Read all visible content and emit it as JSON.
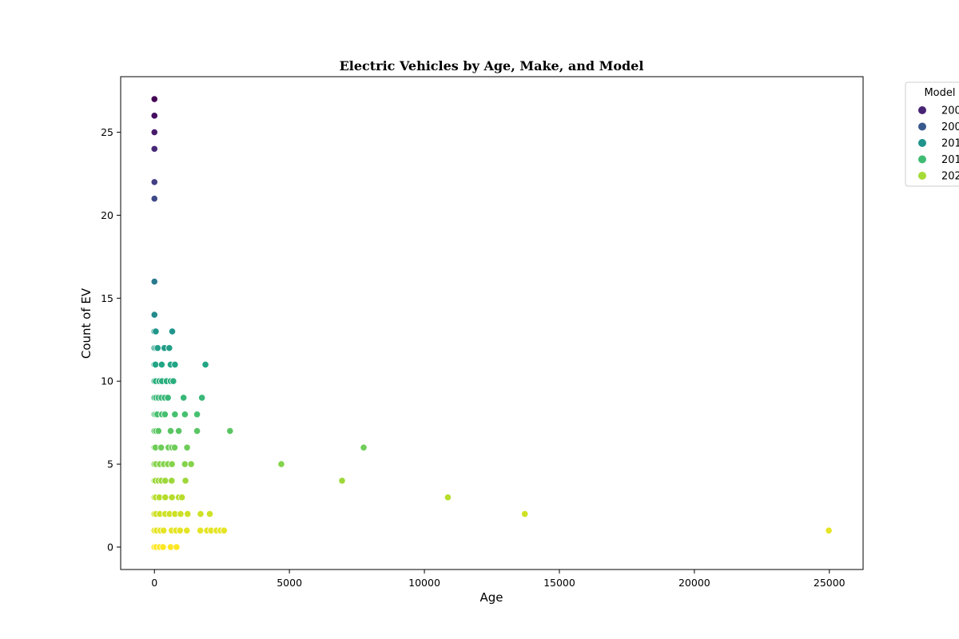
{
  "chart_data": {
    "type": "scatter",
    "title": "Electric Vehicles by Age, Make, and Model",
    "xlabel": "Age",
    "ylabel": "Count of EV",
    "xlim": [
      -1250,
      26250
    ],
    "ylim": [
      -1.35,
      28.35
    ],
    "xticks": [
      0,
      5000,
      10000,
      15000,
      20000,
      25000
    ],
    "yticks": [
      0,
      5,
      10,
      15,
      20,
      25
    ],
    "grid": false,
    "legend": {
      "title": "Model",
      "placement": "upper-right-outside",
      "entries": [
        {
          "label": "200",
          "color": "#482475"
        },
        {
          "label": "200",
          "color": "#38598c"
        },
        {
          "label": "201",
          "color": "#1f948c"
        },
        {
          "label": "201",
          "color": "#3fbc73"
        },
        {
          "label": "202",
          "color": "#a5db36"
        }
      ]
    },
    "colormap": [
      "#440154",
      "#482475",
      "#414487",
      "#355f8d",
      "#2a788e",
      "#21918c",
      "#22a884",
      "#44bf70",
      "#7ad151",
      "#bddf26",
      "#fde725"
    ],
    "points": [
      {
        "x": 0,
        "y": 27
      },
      {
        "x": 0,
        "y": 26
      },
      {
        "x": 0,
        "y": 25
      },
      {
        "x": 0,
        "y": 24
      },
      {
        "x": 0,
        "y": 22
      },
      {
        "x": 0,
        "y": 21
      },
      {
        "x": 0,
        "y": 16
      },
      {
        "x": 0,
        "y": 14
      },
      {
        "x": 0,
        "y": 13
      },
      {
        "x": 50,
        "y": 13
      },
      {
        "x": 660,
        "y": 13
      },
      {
        "x": 0,
        "y": 12
      },
      {
        "x": 60,
        "y": 12
      },
      {
        "x": 120,
        "y": 12
      },
      {
        "x": 370,
        "y": 12
      },
      {
        "x": 550,
        "y": 12
      },
      {
        "x": 0,
        "y": 11
      },
      {
        "x": 40,
        "y": 11
      },
      {
        "x": 270,
        "y": 11
      },
      {
        "x": 600,
        "y": 11
      },
      {
        "x": 760,
        "y": 11
      },
      {
        "x": 1890,
        "y": 11
      },
      {
        "x": 0,
        "y": 10
      },
      {
        "x": 50,
        "y": 10
      },
      {
        "x": 180,
        "y": 10
      },
      {
        "x": 280,
        "y": 10
      },
      {
        "x": 450,
        "y": 10
      },
      {
        "x": 600,
        "y": 10
      },
      {
        "x": 700,
        "y": 10
      },
      {
        "x": 0,
        "y": 9
      },
      {
        "x": 60,
        "y": 9
      },
      {
        "x": 150,
        "y": 9
      },
      {
        "x": 260,
        "y": 9
      },
      {
        "x": 380,
        "y": 9
      },
      {
        "x": 500,
        "y": 9
      },
      {
        "x": 1080,
        "y": 9
      },
      {
        "x": 1760,
        "y": 9
      },
      {
        "x": 0,
        "y": 8
      },
      {
        "x": 50,
        "y": 8
      },
      {
        "x": 110,
        "y": 8
      },
      {
        "x": 280,
        "y": 8
      },
      {
        "x": 390,
        "y": 8
      },
      {
        "x": 760,
        "y": 8
      },
      {
        "x": 1130,
        "y": 8
      },
      {
        "x": 1580,
        "y": 8
      },
      {
        "x": 0,
        "y": 7
      },
      {
        "x": 60,
        "y": 7
      },
      {
        "x": 150,
        "y": 7
      },
      {
        "x": 600,
        "y": 7
      },
      {
        "x": 900,
        "y": 7
      },
      {
        "x": 1580,
        "y": 7
      },
      {
        "x": 2800,
        "y": 7
      },
      {
        "x": 0,
        "y": 6
      },
      {
        "x": 40,
        "y": 6
      },
      {
        "x": 250,
        "y": 6
      },
      {
        "x": 520,
        "y": 6
      },
      {
        "x": 650,
        "y": 6
      },
      {
        "x": 750,
        "y": 6
      },
      {
        "x": 1210,
        "y": 6
      },
      {
        "x": 7750,
        "y": 6
      },
      {
        "x": 0,
        "y": 5
      },
      {
        "x": 60,
        "y": 5
      },
      {
        "x": 200,
        "y": 5
      },
      {
        "x": 350,
        "y": 5
      },
      {
        "x": 500,
        "y": 5
      },
      {
        "x": 650,
        "y": 5
      },
      {
        "x": 1130,
        "y": 5
      },
      {
        "x": 1360,
        "y": 5
      },
      {
        "x": 4700,
        "y": 5
      },
      {
        "x": 0,
        "y": 4
      },
      {
        "x": 40,
        "y": 4
      },
      {
        "x": 150,
        "y": 4
      },
      {
        "x": 260,
        "y": 4
      },
      {
        "x": 400,
        "y": 4
      },
      {
        "x": 640,
        "y": 4
      },
      {
        "x": 1150,
        "y": 4
      },
      {
        "x": 6950,
        "y": 4
      },
      {
        "x": 0,
        "y": 3
      },
      {
        "x": 50,
        "y": 3
      },
      {
        "x": 180,
        "y": 3
      },
      {
        "x": 400,
        "y": 3
      },
      {
        "x": 650,
        "y": 3
      },
      {
        "x": 900,
        "y": 3
      },
      {
        "x": 1020,
        "y": 3
      },
      {
        "x": 10870,
        "y": 3
      },
      {
        "x": 0,
        "y": 2
      },
      {
        "x": 60,
        "y": 2
      },
      {
        "x": 200,
        "y": 2
      },
      {
        "x": 400,
        "y": 2
      },
      {
        "x": 560,
        "y": 2
      },
      {
        "x": 760,
        "y": 2
      },
      {
        "x": 970,
        "y": 2
      },
      {
        "x": 1230,
        "y": 2
      },
      {
        "x": 1710,
        "y": 2
      },
      {
        "x": 2050,
        "y": 2
      },
      {
        "x": 13720,
        "y": 2
      },
      {
        "x": 0,
        "y": 1
      },
      {
        "x": 80,
        "y": 1
      },
      {
        "x": 220,
        "y": 1
      },
      {
        "x": 340,
        "y": 1
      },
      {
        "x": 640,
        "y": 1
      },
      {
        "x": 800,
        "y": 1
      },
      {
        "x": 950,
        "y": 1
      },
      {
        "x": 1200,
        "y": 1
      },
      {
        "x": 1700,
        "y": 1
      },
      {
        "x": 1950,
        "y": 1
      },
      {
        "x": 2100,
        "y": 1
      },
      {
        "x": 2300,
        "y": 1
      },
      {
        "x": 2450,
        "y": 1
      },
      {
        "x": 2580,
        "y": 1
      },
      {
        "x": 24980,
        "y": 1
      },
      {
        "x": 0,
        "y": 0
      },
      {
        "x": 70,
        "y": 0
      },
      {
        "x": 200,
        "y": 0
      },
      {
        "x": 320,
        "y": 0
      },
      {
        "x": 600,
        "y": 0
      },
      {
        "x": 820,
        "y": 0
      }
    ]
  }
}
